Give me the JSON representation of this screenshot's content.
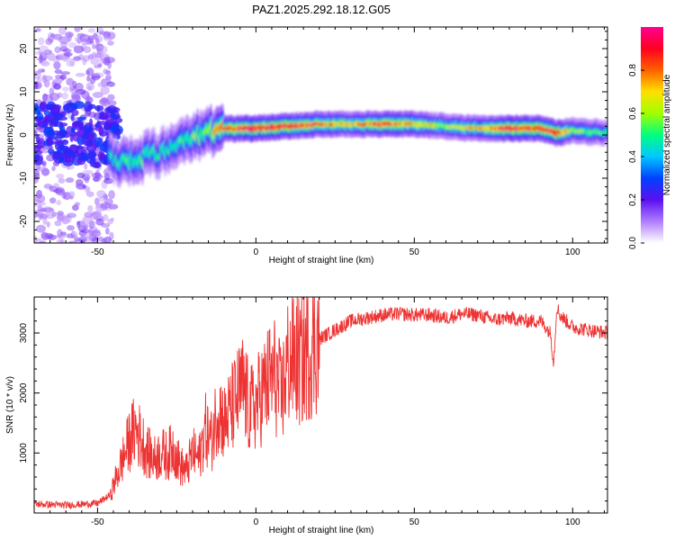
{
  "title": "PAZ1.2025.292.18.12.G05",
  "colors": {
    "snr_line": "#ee3333",
    "axis": "#000000",
    "background": "#ffffff"
  },
  "chart_data": [
    {
      "type": "heatmap",
      "name": "spectrogram",
      "xlabel": "Height of straight line (km)",
      "ylabel": "Frequency (Hz)",
      "xlim": [
        -70,
        111
      ],
      "ylim": [
        -25,
        25
      ],
      "xticks": [
        -50,
        0,
        50,
        100
      ],
      "yticks": [
        -20,
        -10,
        0,
        10,
        20
      ],
      "colorbar": {
        "label": "Normalized spectral amplitude",
        "range": [
          0.0,
          1.0
        ],
        "ticks": [
          "0.0",
          "0.2",
          "0.4",
          "0.6",
          "0.8"
        ],
        "colormap": [
          "#ffffff",
          "#b07cff",
          "#5a10f0",
          "#0040ff",
          "#00c8ff",
          "#00ff80",
          "#a0ff00",
          "#ffe000",
          "#ff6000",
          "#ff0020",
          "#ff0090"
        ]
      },
      "ridge": [
        {
          "height": -45,
          "freq": -5.5,
          "amp": 0.45
        },
        {
          "height": -40,
          "freq": -6.5,
          "amp": 0.55
        },
        {
          "height": -35,
          "freq": -5.0,
          "amp": 0.5
        },
        {
          "height": -30,
          "freq": -4.0,
          "amp": 0.45
        },
        {
          "height": -25,
          "freq": -1.5,
          "amp": 0.5
        },
        {
          "height": -20,
          "freq": -0.5,
          "amp": 0.55
        },
        {
          "height": -15,
          "freq": 0.5,
          "amp": 0.6
        },
        {
          "height": -10,
          "freq": 1.5,
          "amp": 0.8
        },
        {
          "height": 0,
          "freq": 1.5,
          "amp": 0.95
        },
        {
          "height": 10,
          "freq": 2.0,
          "amp": 0.9
        },
        {
          "height": 20,
          "freq": 2.5,
          "amp": 0.8
        },
        {
          "height": 30,
          "freq": 2.5,
          "amp": 0.7
        },
        {
          "height": 40,
          "freq": 2.5,
          "amp": 0.85
        },
        {
          "height": 50,
          "freq": 2.5,
          "amp": 0.75
        },
        {
          "height": 60,
          "freq": 2.0,
          "amp": 0.6
        },
        {
          "height": 70,
          "freq": 1.5,
          "amp": 0.7
        },
        {
          "height": 80,
          "freq": 1.5,
          "amp": 0.9
        },
        {
          "height": 90,
          "freq": 1.5,
          "amp": 0.9
        },
        {
          "height": 95,
          "freq": 0.5,
          "amp": 0.9
        },
        {
          "height": 100,
          "freq": 1.0,
          "amp": 0.6
        },
        {
          "height": 111,
          "freq": 0.5,
          "amp": 0.5
        }
      ],
      "noise_region": {
        "x_range": [
          -70,
          -45
        ],
        "freq_range": [
          -25,
          25
        ]
      }
    },
    {
      "type": "line",
      "name": "snr",
      "xlabel": "Height of straight line (km)",
      "ylabel": "SNR (10 * v/v)",
      "xlim": [
        -70,
        111
      ],
      "ylim": [
        0,
        3600
      ],
      "xticks": [
        -50,
        0,
        50,
        100
      ],
      "yticks": [
        1000,
        2000,
        3000
      ],
      "series": [
        {
          "name": "SNR",
          "x": [
            -70,
            -60,
            -50,
            -46,
            -44,
            -42,
            -40,
            -38,
            -36,
            -34,
            -32,
            -30,
            -28,
            -26,
            -24,
            -22,
            -20,
            -18,
            -16,
            -14,
            -12,
            -10,
            -8,
            -6,
            -4,
            -2,
            0,
            2,
            4,
            6,
            8,
            10,
            12,
            14,
            16,
            18,
            20,
            25,
            30,
            35,
            40,
            45,
            50,
            55,
            60,
            65,
            70,
            75,
            80,
            85,
            90,
            93,
            94,
            95,
            96,
            98,
            100,
            105,
            111
          ],
          "y": [
            150,
            130,
            160,
            300,
            600,
            900,
            1200,
            1400,
            1200,
            1000,
            900,
            1000,
            950,
            1100,
            800,
            700,
            1000,
            900,
            1400,
            1200,
            1800,
            1500,
            1700,
            1900,
            2100,
            1700,
            1800,
            2000,
            2200,
            2300,
            1900,
            2500,
            2600,
            2500,
            2700,
            2800,
            2900,
            3050,
            3200,
            3250,
            3300,
            3320,
            3300,
            3300,
            3250,
            3320,
            3300,
            3220,
            3250,
            3200,
            3200,
            3000,
            2500,
            3450,
            3300,
            3200,
            3100,
            3050,
            3000
          ]
        }
      ]
    }
  ]
}
